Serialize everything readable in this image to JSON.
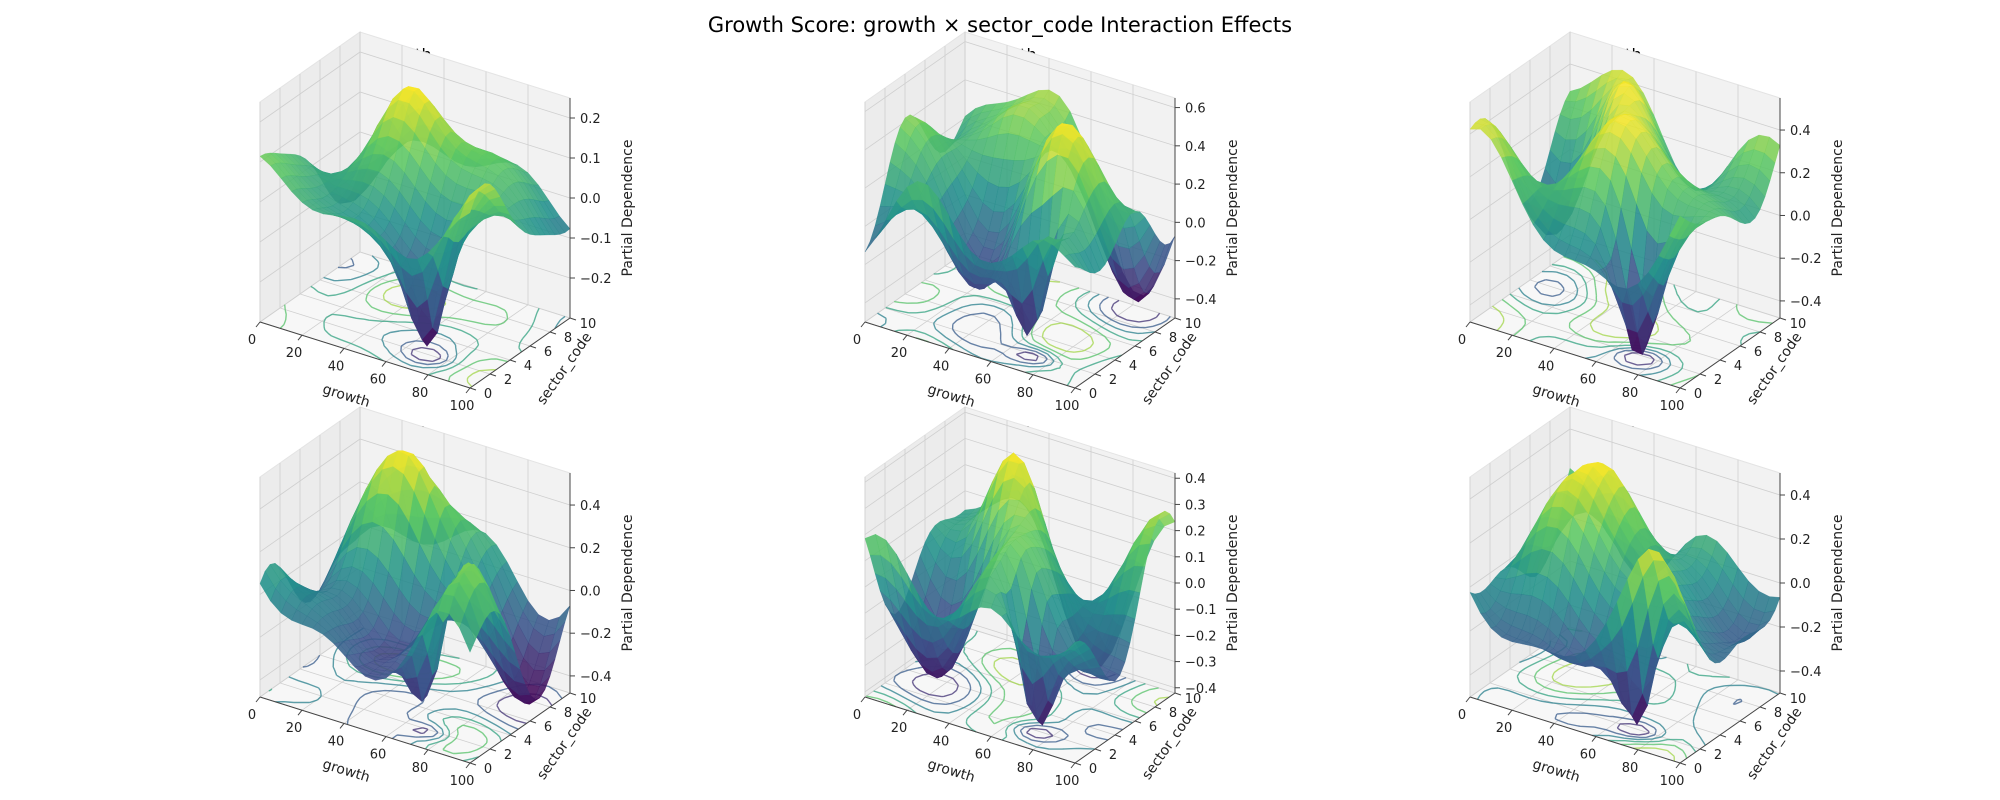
{
  "figure": {
    "title": "Growth Score: growth × sector_code Interaction Effects"
  },
  "colormap": [
    "#440154",
    "#3b528b",
    "#21918c",
    "#5ec962",
    "#fde725"
  ],
  "chart_data": [
    {
      "type": "surface3d",
      "title": "1 month",
      "xlabel": "growth",
      "ylabel": "sector_code",
      "zlabel": "Partial Dependence",
      "xlim": [
        0,
        100
      ],
      "ylim": [
        0,
        10
      ],
      "zlim": [
        -0.3,
        0.25
      ],
      "xticks": [
        "0",
        "20",
        "40",
        "60",
        "80",
        "100"
      ],
      "yticks": [
        "0",
        "2",
        "4",
        "6",
        "8",
        "10"
      ],
      "zticks": [
        "−0.2",
        "−0.1",
        "0.0",
        "0.1",
        "0.2"
      ],
      "zrange": [
        -0.28,
        0.22
      ],
      "seed": 1.3,
      "contours": true
    },
    {
      "type": "surface3d",
      "title": "3 month",
      "xlabel": "growth",
      "ylabel": "sector_code",
      "zlabel": "Partial Dependence",
      "xlim": [
        0,
        100
      ],
      "ylim": [
        0,
        10
      ],
      "zlim": [
        -0.5,
        0.65
      ],
      "xticks": [
        "0",
        "20",
        "40",
        "60",
        "80",
        "100"
      ],
      "yticks": [
        "0",
        "2",
        "4",
        "6",
        "8",
        "10"
      ],
      "zticks": [
        "−0.4",
        "−0.2",
        "0.0",
        "0.2",
        "0.4",
        "0.6"
      ],
      "zrange": [
        -0.45,
        0.62
      ],
      "seed": 2.7,
      "contours": true
    },
    {
      "type": "surface3d",
      "title": "6 month",
      "xlabel": "growth",
      "ylabel": "sector_code",
      "zlabel": "Partial Dependence",
      "xlim": [
        0,
        100
      ],
      "ylim": [
        0,
        10
      ],
      "zlim": [
        -0.48,
        0.55
      ],
      "xticks": [
        "0",
        "20",
        "40",
        "60",
        "80",
        "100"
      ],
      "yticks": [
        "0",
        "2",
        "4",
        "6",
        "8",
        "10"
      ],
      "zticks": [
        "−0.4",
        "−0.2",
        "0.0",
        "0.2",
        "0.4"
      ],
      "zrange": [
        -0.45,
        0.5
      ],
      "seed": 4.1,
      "contours": true
    },
    {
      "type": "surface3d",
      "title": "1 year",
      "xlabel": "growth",
      "ylabel": "sector_code",
      "zlabel": "Partial Dependence",
      "xlim": [
        0,
        100
      ],
      "ylim": [
        0,
        10
      ],
      "zlim": [
        -0.48,
        0.55
      ],
      "xticks": [
        "0",
        "20",
        "40",
        "60",
        "80",
        "100"
      ],
      "yticks": [
        "0",
        "2",
        "4",
        "6",
        "8",
        "10"
      ],
      "zticks": [
        "−0.4",
        "−0.2",
        "0.0",
        "0.2",
        "0.4"
      ],
      "zrange": [
        -0.45,
        0.52
      ],
      "seed": 5.6,
      "contours": true
    },
    {
      "type": "surface3d",
      "title": "2 year",
      "xlabel": "growth",
      "ylabel": "sector_code",
      "zlabel": "Partial Dependence",
      "xlim": [
        0,
        100
      ],
      "ylim": [
        0,
        10
      ],
      "zlim": [
        -0.42,
        0.42
      ],
      "xticks": [
        "0",
        "20",
        "40",
        "60",
        "80",
        "100"
      ],
      "yticks": [
        "0",
        "2",
        "4",
        "6",
        "8",
        "10"
      ],
      "zticks": [
        "−0.4",
        "−0.3",
        "−0.2",
        "−0.1",
        "0.0",
        "0.1",
        "0.2",
        "0.3",
        "0.4"
      ],
      "zrange": [
        -0.42,
        0.4
      ],
      "seed": 7.2,
      "contours": true
    },
    {
      "type": "surface3d",
      "title": "5 year",
      "xlabel": "growth",
      "ylabel": "sector_code",
      "zlabel": "Partial Dependence",
      "xlim": [
        0,
        100
      ],
      "ylim": [
        0,
        10
      ],
      "zlim": [
        -0.5,
        0.5
      ],
      "xticks": [
        "0",
        "20",
        "40",
        "60",
        "80",
        "100"
      ],
      "yticks": [
        "0",
        "2",
        "4",
        "6",
        "8",
        "10"
      ],
      "zticks": [
        "−0.4",
        "−0.2",
        "0.0",
        "0.2",
        "0.4"
      ],
      "zrange": [
        -0.48,
        0.45
      ],
      "seed": 8.9,
      "contours": true
    }
  ]
}
